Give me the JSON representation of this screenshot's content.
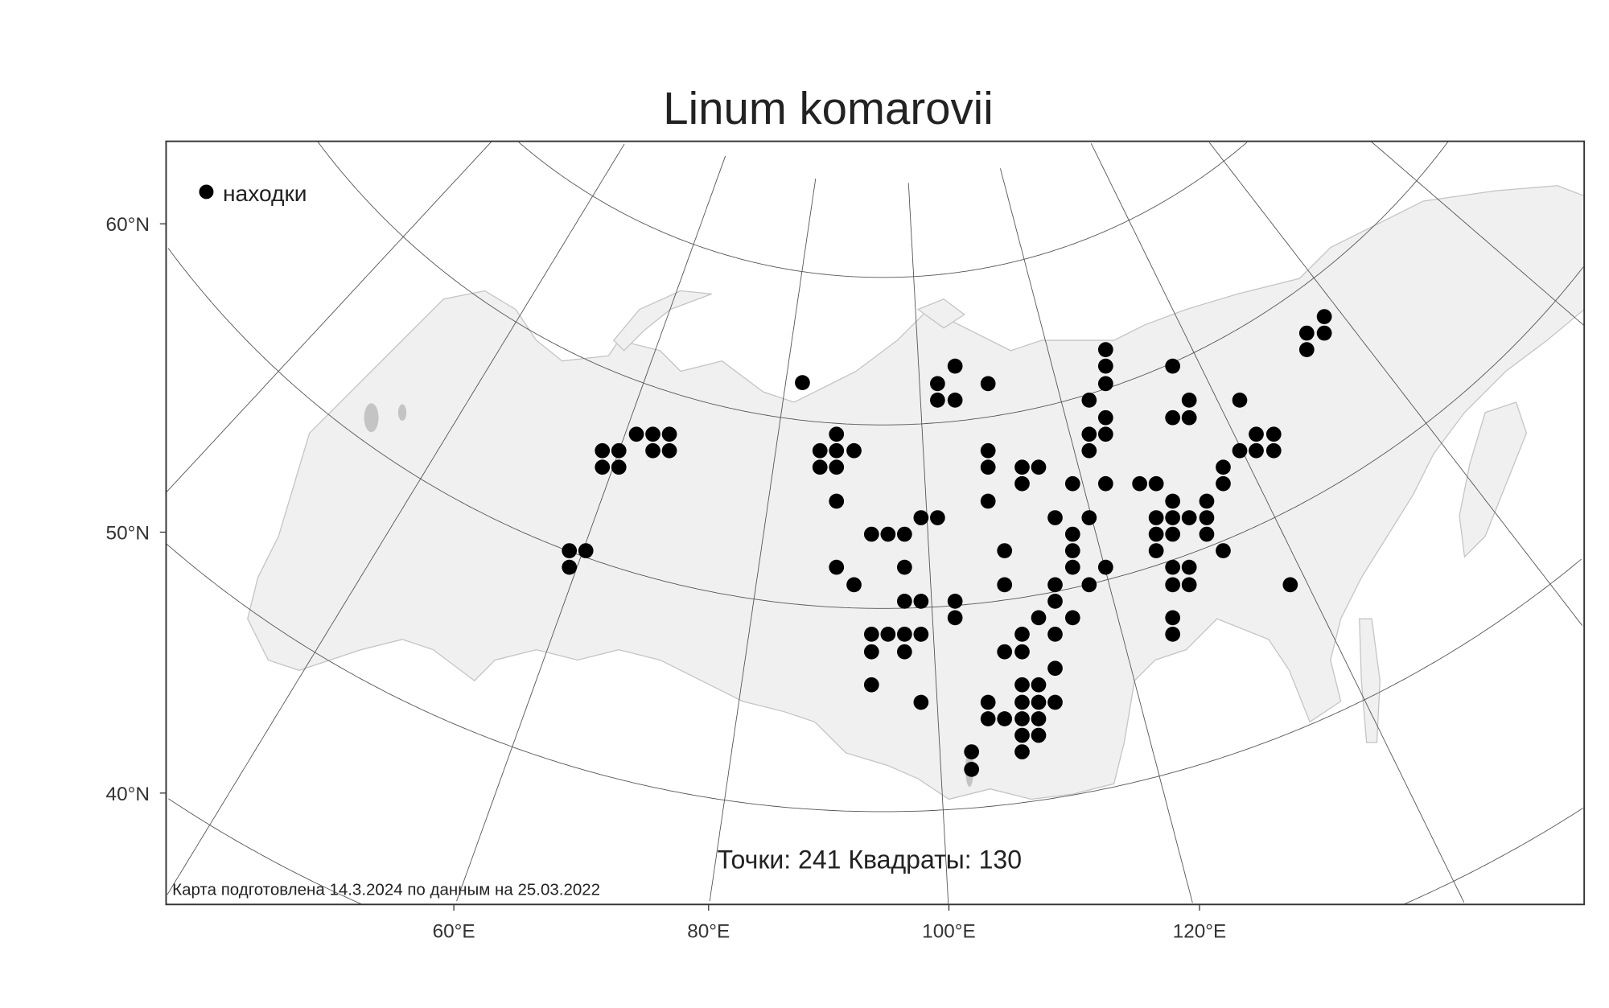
{
  "title": "Linum komarovii",
  "legend": {
    "marker_label": "находки",
    "marker_icon": "filled-circle"
  },
  "axes": {
    "lat_labels": [
      "60°N",
      "50°N",
      "40°N"
    ],
    "lon_labels": [
      "60°E",
      "80°E",
      "100°E",
      "120°E"
    ]
  },
  "stats": "Точки: 241 Квадраты: 130",
  "credit": "Карта подготовлена 14.3.2024 по данным на 25.03.2022",
  "colors": {
    "land": "#f0f0f0",
    "outline": "#c4c4c4",
    "graticule": "#555555",
    "marker": "#000000",
    "frame": "#333333"
  }
}
